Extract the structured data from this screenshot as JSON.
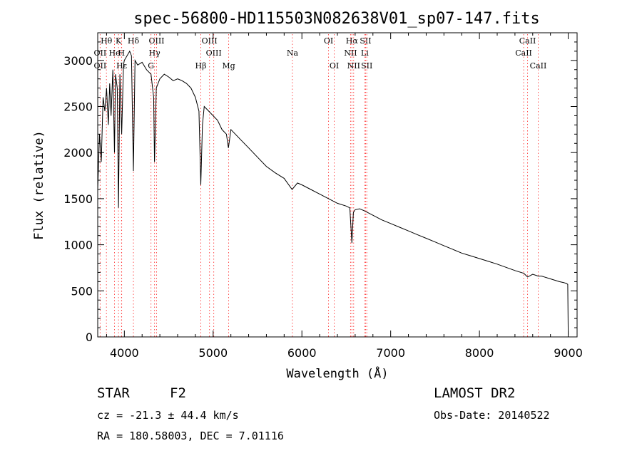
{
  "chart_data": {
    "type": "line",
    "title": "spec-56800-HD115503N082638V01_sp07-147.fits",
    "xlabel": "Wavelength (Å)",
    "ylabel": "Flux (relative)",
    "xlim": [
      3700,
      9100
    ],
    "ylim": [
      0,
      3300
    ],
    "xticks": [
      4000,
      5000,
      6000,
      7000,
      8000,
      9000
    ],
    "yticks": [
      0,
      500,
      1000,
      1500,
      2000,
      2500,
      3000
    ],
    "grid": false,
    "series": [
      {
        "x": [
          3700,
          3720,
          3740,
          3760,
          3780,
          3800,
          3820,
          3835,
          3850,
          3870,
          3889,
          3900,
          3920,
          3934,
          3950,
          3970,
          3990,
          4000,
          4030,
          4060,
          4080,
          4102,
          4120,
          4150,
          4200,
          4250,
          4300,
          4330,
          4340,
          4360,
          4400,
          4450,
          4500,
          4550,
          4600,
          4650,
          4700,
          4750,
          4800,
          4840,
          4861,
          4880,
          4900,
          4950,
          5000,
          5050,
          5100,
          5150,
          5172,
          5200,
          5250,
          5300,
          5400,
          5500,
          5600,
          5700,
          5800,
          5890,
          5950,
          6000,
          6100,
          6200,
          6300,
          6400,
          6500,
          6540,
          6563,
          6580,
          6600,
          6650,
          6700,
          6800,
          6900,
          7000,
          7100,
          7200,
          7300,
          7400,
          7500,
          7600,
          7700,
          7800,
          7900,
          8000,
          8100,
          8200,
          8300,
          8400,
          8500,
          8542,
          8600,
          8662,
          8700,
          8800,
          8900,
          8950,
          8980,
          8995,
          9000
        ],
        "values": [
          1600,
          2200,
          1900,
          2600,
          2450,
          2700,
          2300,
          2750,
          2400,
          2900,
          2000,
          2850,
          2700,
          1400,
          2850,
          2200,
          2950,
          3000,
          3050,
          3100,
          3050,
          1800,
          3000,
          2950,
          2980,
          2900,
          2850,
          2600,
          1900,
          2700,
          2800,
          2850,
          2820,
          2780,
          2800,
          2780,
          2750,
          2700,
          2600,
          2450,
          1650,
          2300,
          2500,
          2450,
          2400,
          2350,
          2250,
          2200,
          2050,
          2250,
          2200,
          2150,
          2050,
          1950,
          1850,
          1780,
          1720,
          1600,
          1670,
          1650,
          1600,
          1550,
          1500,
          1450,
          1420,
          1400,
          1020,
          1350,
          1380,
          1390,
          1370,
          1320,
          1270,
          1230,
          1190,
          1150,
          1110,
          1070,
          1030,
          990,
          950,
          910,
          880,
          850,
          820,
          790,
          755,
          720,
          690,
          650,
          680,
          660,
          660,
          630,
          600,
          590,
          580,
          570,
          20
        ]
      }
    ],
    "line_markers": [
      {
        "label": "Hθ",
        "wl": 3798,
        "row": 0
      },
      {
        "label": "K",
        "wl": 3934,
        "row": 0
      },
      {
        "label": "Hδ",
        "wl": 4102,
        "row": 0
      },
      {
        "label": "OIII",
        "wl": 4363,
        "row": 0
      },
      {
        "label": "OIII",
        "wl": 4959,
        "row": 0
      },
      {
        "label": "OI",
        "wl": 6300,
        "row": 0
      },
      {
        "label": "Hα",
        "wl": 6563,
        "row": 0
      },
      {
        "label": "SII",
        "wl": 6717,
        "row": 0
      },
      {
        "label": "CaII",
        "wl": 8542,
        "row": 0
      },
      {
        "label": "OII",
        "wl": 3727,
        "row": 1
      },
      {
        "label": "He",
        "wl": 3889,
        "row": 1
      },
      {
        "label": "H",
        "wl": 3968,
        "row": 1
      },
      {
        "label": "Hγ",
        "wl": 4340,
        "row": 1
      },
      {
        "label": "OIII",
        "wl": 5007,
        "row": 1
      },
      {
        "label": "Na",
        "wl": 5893,
        "row": 1
      },
      {
        "label": "NII",
        "wl": 6548,
        "row": 1
      },
      {
        "label": "Li",
        "wl": 6708,
        "row": 1
      },
      {
        "label": "CaII",
        "wl": 8498,
        "row": 1
      },
      {
        "label": "OII",
        "wl": 3727,
        "row": 2
      },
      {
        "label": "Hε",
        "wl": 3970,
        "row": 2
      },
      {
        "label": "G",
        "wl": 4300,
        "row": 2
      },
      {
        "label": "Hβ",
        "wl": 4861,
        "row": 2
      },
      {
        "label": "Mg",
        "wl": 5175,
        "row": 2
      },
      {
        "label": "OI",
        "wl": 6364,
        "row": 2
      },
      {
        "label": "NII",
        "wl": 6583,
        "row": 2
      },
      {
        "label": "SII",
        "wl": 6731,
        "row": 2
      },
      {
        "label": "CaII",
        "wl": 8662,
        "row": 2
      }
    ]
  },
  "info": {
    "object_class": "STAR",
    "subclass": "F2",
    "survey": "LAMOST DR2",
    "cz": "cz = -21.3 ± 44.4 km/s",
    "obs_date": "Obs-Date: 20140522",
    "radec": "RA = 180.58003, DEC =   7.01116"
  }
}
